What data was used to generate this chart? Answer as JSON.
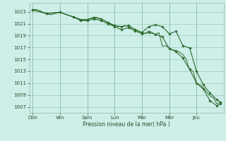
{
  "background_color": "#ceeee8",
  "grid_color": "#99ccbb",
  "line_color": "#2d6b2d",
  "xlabel": "Pression niveau de la mer( hPa )",
  "ylim": [
    1006.0,
    1024.5
  ],
  "yticks": [
    1007,
    1009,
    1011,
    1013,
    1015,
    1017,
    1019,
    1021,
    1023
  ],
  "day_labels": [
    "Dim",
    "Ven",
    "Sam",
    "Lun",
    "Mar",
    "Mer",
    "Jeu"
  ],
  "day_positions": [
    0,
    8,
    16,
    24,
    32,
    40,
    48
  ],
  "n_points": 56,
  "line1_x": [
    0,
    1,
    2,
    3,
    4,
    5,
    6,
    7,
    8,
    9,
    10,
    11,
    12,
    13,
    14,
    15,
    16,
    17,
    18,
    19,
    20,
    21,
    22,
    23,
    24,
    25,
    26,
    27,
    28,
    29,
    30,
    31,
    32,
    33,
    34,
    35,
    36,
    37,
    38,
    39,
    40,
    41,
    42,
    43,
    44,
    45,
    46,
    47,
    48,
    49,
    50,
    51,
    52,
    53,
    54,
    55
  ],
  "line1_y": [
    1023.3,
    1023.4,
    1023.2,
    1022.9,
    1022.7,
    1022.5,
    1022.6,
    1022.8,
    1022.9,
    1022.7,
    1022.5,
    1022.3,
    1022.1,
    1021.9,
    1021.7,
    1021.5,
    1021.7,
    1021.9,
    1022.1,
    1022.0,
    1021.8,
    1021.5,
    1021.2,
    1020.9,
    1020.7,
    1020.5,
    1020.5,
    1020.7,
    1020.5,
    1020.3,
    1020.0,
    1019.8,
    1019.5,
    1019.3,
    1019.8,
    1019.5,
    1019.2,
    1019.5,
    1017.2,
    1017.3,
    1016.9,
    1016.6,
    1016.5,
    1016.2,
    1015.8,
    1015.0,
    1013.2,
    1013.0,
    1011.0,
    1010.7,
    1010.2,
    1009.5,
    1008.8,
    1008.5,
    1007.5,
    1007.8
  ],
  "line2_x": [
    0,
    4,
    8,
    12,
    14,
    16,
    18,
    20,
    22,
    24,
    26,
    28,
    30,
    32,
    34,
    36,
    38,
    40,
    42,
    44,
    46,
    48,
    50,
    52,
    54,
    55
  ],
  "line2_y": [
    1023.3,
    1022.7,
    1022.9,
    1022.1,
    1021.7,
    1021.7,
    1022.0,
    1021.8,
    1021.2,
    1020.7,
    1020.5,
    1020.7,
    1020.0,
    1019.5,
    1020.5,
    1020.8,
    1020.5,
    1019.3,
    1019.7,
    1017.3,
    1016.9,
    1013.0,
    1010.7,
    1009.3,
    1008.2,
    1007.8
  ],
  "line3_x": [
    0,
    4,
    8,
    12,
    14,
    16,
    18,
    20,
    22,
    24,
    26,
    28,
    30,
    32,
    34,
    36,
    38,
    40,
    42,
    44,
    46,
    48,
    50,
    52,
    54,
    55
  ],
  "line3_y": [
    1023.3,
    1022.7,
    1022.9,
    1022.1,
    1021.5,
    1021.5,
    1021.8,
    1021.5,
    1021.0,
    1020.5,
    1020.0,
    1020.3,
    1019.8,
    1019.3,
    1019.5,
    1019.2,
    1018.8,
    1016.8,
    1016.3,
    1015.2,
    1013.3,
    1011.0,
    1010.0,
    1008.0,
    1007.2,
    1007.5
  ]
}
